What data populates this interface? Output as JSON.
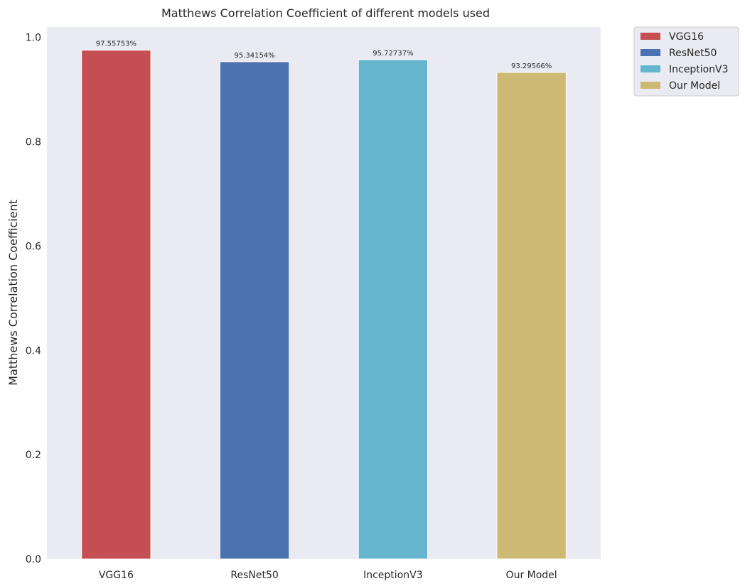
{
  "chart_data": {
    "type": "bar",
    "title": "Matthews Correlation Coefficient of different models used",
    "xlabel": "",
    "ylabel": "Matthews Correlation Coefficient",
    "ylim": [
      0,
      1.02
    ],
    "yticks": [
      0.0,
      0.2,
      0.4,
      0.6,
      0.8,
      1.0
    ],
    "ytick_labels": [
      "0.0",
      "0.2",
      "0.4",
      "0.6",
      "0.8",
      "1.0"
    ],
    "categories": [
      "VGG16",
      "ResNet50",
      "InceptionV3",
      "Our Model"
    ],
    "values": [
      0.9755753,
      0.9534154,
      0.9572737,
      0.9329566
    ],
    "data_labels": [
      "97.55753%",
      "95.34154%",
      "95.72737%",
      "93.29566%"
    ],
    "colors": [
      "#c44e52",
      "#4c72b0",
      "#64b5cd",
      "#ccb974"
    ],
    "legend": {
      "placement": "outside-top-right",
      "entries": [
        "VGG16",
        "ResNet50",
        "InceptionV3",
        "Our Model"
      ]
    },
    "grid": false,
    "background": "#eaeaf2"
  }
}
